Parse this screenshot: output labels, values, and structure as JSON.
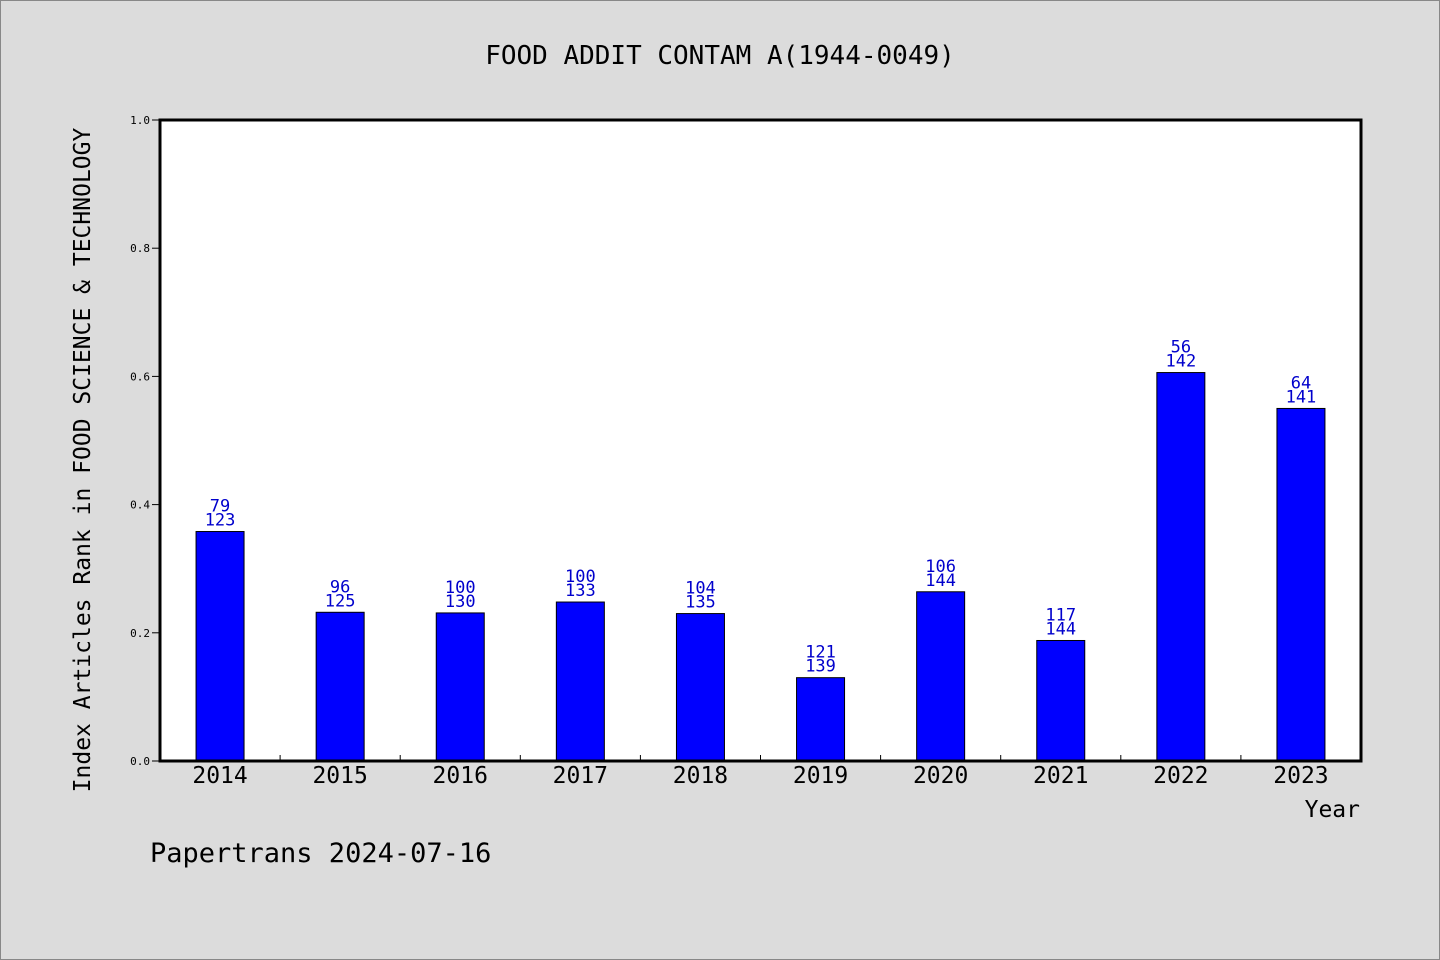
{
  "chart_data": {
    "type": "bar",
    "title": "FOOD ADDIT CONTAM A(1944-0049)",
    "xlabel": "Year",
    "ylabel": "Index Articles Rank in FOOD SCIENCE & TECHNOLOGY",
    "ylim": [
      0,
      1.0
    ],
    "yticks": [
      "0.0",
      "0.2",
      "0.4",
      "0.6",
      "0.8",
      "1.0"
    ],
    "grid": false,
    "categories": [
      "2014",
      "2015",
      "2016",
      "2017",
      "2018",
      "2019",
      "2020",
      "2021",
      "2022",
      "2023"
    ],
    "values": [
      0.358,
      0.232,
      0.231,
      0.248,
      0.23,
      0.13,
      0.264,
      0.188,
      0.606,
      0.55
    ],
    "rank": [
      "79",
      "96",
      "100",
      "100",
      "104",
      "121",
      "106",
      "117",
      "56",
      "64"
    ],
    "total": [
      "123",
      "125",
      "130",
      "133",
      "135",
      "139",
      "144",
      "144",
      "142",
      "141"
    ],
    "colors": {
      "bar": "#0000ff",
      "label": "#0000cc",
      "background": "#dcdcdc",
      "plot_background": "#ffffff",
      "axis": "#000000"
    }
  },
  "footer": {
    "credit": "Papertrans 2024-07-16"
  }
}
